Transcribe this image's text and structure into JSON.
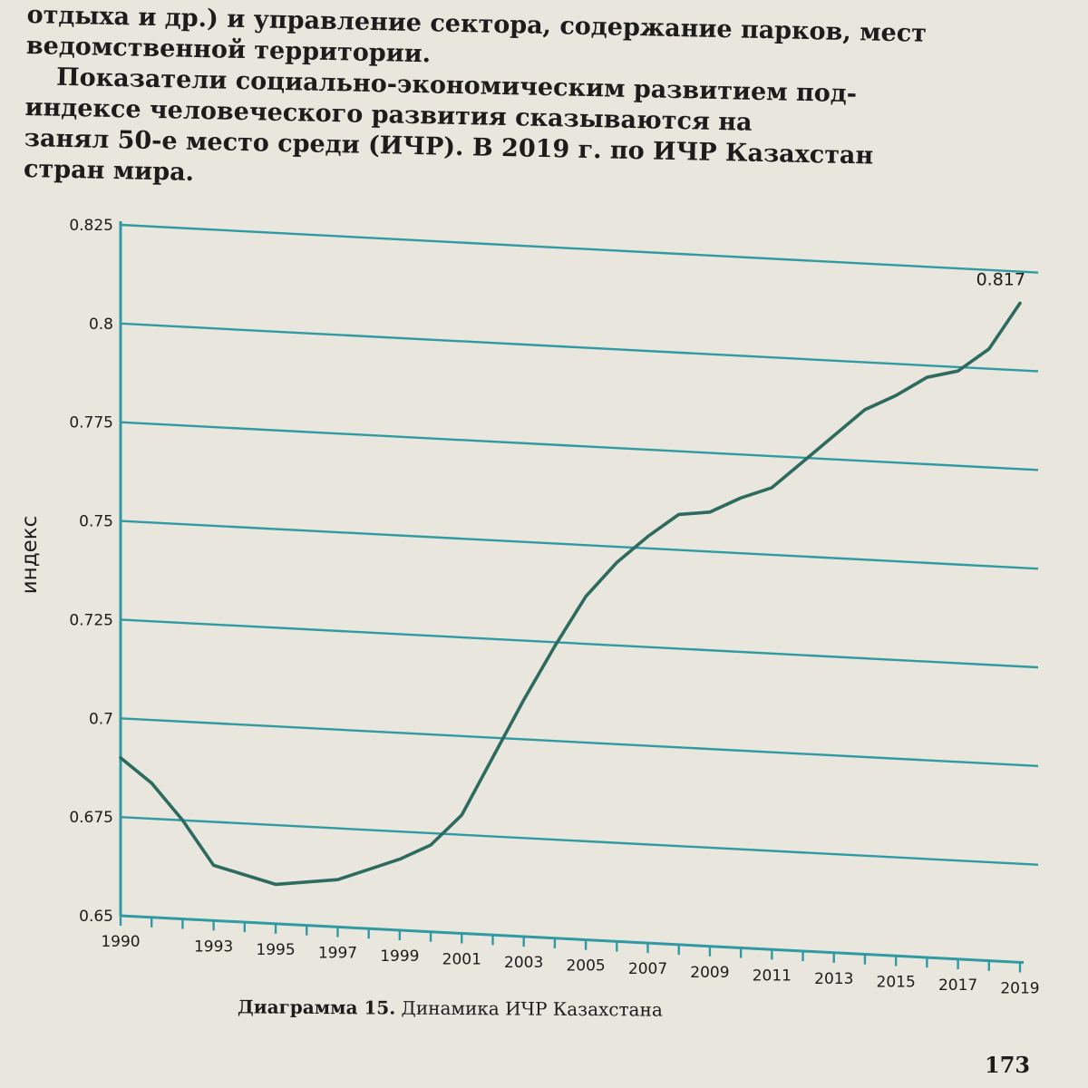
{
  "page_text": {
    "line1": "отдыха и др.) и управление сектора, содержание парков, мест",
    "line2": "ведомственной территории.",
    "line3": "Показатели социально-экономическим развитием под-",
    "line4": "индексе человеческого развития сказываются на",
    "line5": "занял 50-е место среди (ИЧР). В 2019 г. по ИЧР Казахстан",
    "line6": "стран мира."
  },
  "caption": {
    "label": "Диаграмма 15.",
    "text": "Динамика ИЧР Казахстана"
  },
  "page_number": "173",
  "chart_data": {
    "type": "line",
    "title": "",
    "xlabel": "",
    "ylabel": "индекс",
    "ylim": [
      0.65,
      0.825
    ],
    "xlim": [
      1990,
      2019
    ],
    "y_ticks": [
      "0.825",
      "0.8",
      "0.775",
      "0.75",
      "0.725",
      "0.7",
      "0.675",
      "0.65"
    ],
    "x_tick_labels": [
      "1990",
      "1993",
      "1995",
      "1997",
      "1999",
      "2001",
      "2003",
      "2005",
      "2007",
      "2009",
      "2011",
      "2013",
      "2015",
      "2017",
      "2019"
    ],
    "grid": true,
    "line_color": "#2d6a5f",
    "grid_color": "#2f9aa3",
    "series": [
      {
        "x": [
          1990,
          1991,
          1992,
          1993,
          1994,
          1995,
          1996,
          1997,
          1998,
          1999,
          2000,
          2001,
          2002,
          2003,
          2004,
          2005,
          2006,
          2007,
          2008,
          2009,
          2010,
          2011,
          2012,
          2013,
          2014,
          2015,
          2016,
          2017,
          2018,
          2019
        ],
        "y": [
          0.69,
          0.684,
          0.675,
          0.664,
          0.662,
          0.66,
          0.661,
          0.662,
          0.665,
          0.668,
          0.672,
          0.68,
          0.695,
          0.71,
          0.724,
          0.737,
          0.746,
          0.753,
          0.759,
          0.76,
          0.764,
          0.767,
          0.774,
          0.781,
          0.788,
          0.792,
          0.797,
          0.799,
          0.805,
          0.817
        ]
      }
    ],
    "annotations": [
      {
        "x": 2019,
        "y": 0.817,
        "text": "0.817"
      }
    ]
  }
}
